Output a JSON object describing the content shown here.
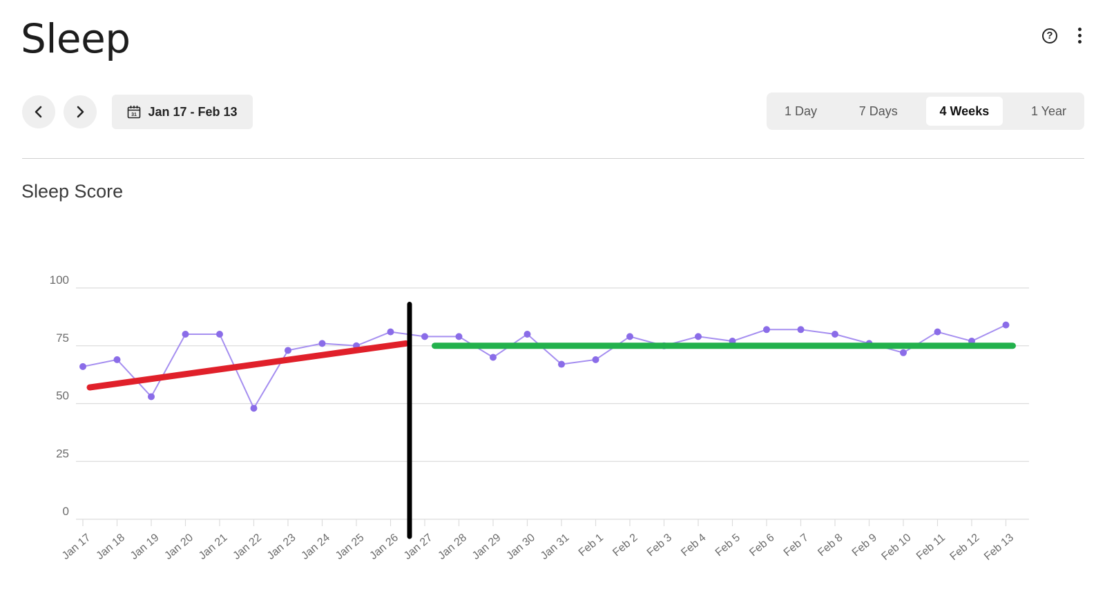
{
  "header": {
    "title": "Sleep",
    "help_icon": "question-circle-icon",
    "more_icon": "vertical-ellipsis-icon"
  },
  "toolbar": {
    "prev_icon": "chevron-left-icon",
    "next_icon": "chevron-right-icon",
    "calendar_icon": "calendar-icon",
    "date_range": "Jan 17 - Feb 13",
    "ranges": [
      {
        "label": "1 Day",
        "active": false
      },
      {
        "label": "7 Days",
        "active": false
      },
      {
        "label": "4 Weeks",
        "active": true
      },
      {
        "label": "1 Year",
        "active": false
      }
    ]
  },
  "section": {
    "title": "Sleep Score"
  },
  "colors": {
    "series_line": "#a58ef0",
    "series_point": "#8a6ce8",
    "trend_before": "#e0202a",
    "trend_after": "#22b14c",
    "marker_line": "#000000",
    "grid": "#dcdcdc",
    "tick_text": "#6b6b6b"
  },
  "chart_data": {
    "type": "line",
    "title": "Sleep Score",
    "categories": [
      "Jan 17",
      "Jan 18",
      "Jan 19",
      "Jan 20",
      "Jan 21",
      "Jan 22",
      "Jan 23",
      "Jan 24",
      "Jan 25",
      "Jan 26",
      "Jan 27",
      "Jan 28",
      "Jan 29",
      "Jan 30",
      "Jan 31",
      "Feb 1",
      "Feb 2",
      "Feb 3",
      "Feb 4",
      "Feb 5",
      "Feb 6",
      "Feb 7",
      "Feb 8",
      "Feb 9",
      "Feb 10",
      "Feb 11",
      "Feb 12",
      "Feb 13"
    ],
    "series": [
      {
        "values": [
          66,
          69,
          53,
          80,
          80,
          48,
          73,
          76,
          75,
          81,
          79,
          79,
          70,
          80,
          67,
          69,
          79,
          75,
          79,
          77,
          82,
          82,
          80,
          76,
          72,
          81,
          77,
          84
        ]
      }
    ],
    "ylim": [
      0,
      100
    ],
    "yticks": [
      0,
      25,
      50,
      75,
      100
    ],
    "grid": true,
    "legend": "none",
    "annotations": [
      {
        "kind": "trend_line",
        "color": "red",
        "x_start": "Jan 17",
        "y_start": 57,
        "x_end": "Jan 26",
        "y_end": 76
      },
      {
        "kind": "vertical_line",
        "color": "black",
        "x": "Jan 27",
        "y_top": 93
      },
      {
        "kind": "horizontal_line",
        "color": "green",
        "x_start": "Jan 28",
        "x_end": "Feb 13",
        "y": 75
      }
    ]
  }
}
